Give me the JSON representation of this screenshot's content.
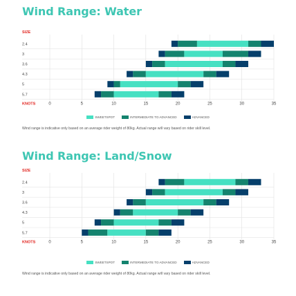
{
  "colors": {
    "title": "#3ec6b3",
    "sweetspot": "#46e0c2",
    "intermediate": "#14836e",
    "advanced": "#063f6b",
    "label_red": "#e1231e",
    "grid": "#d9d9d9",
    "row_line": "#e4e4e4"
  },
  "legend": {
    "sweetspot": "SWEETSPOT",
    "intermediate": "INTERMEDIATE TO ADVANCED",
    "advanced": "ADVANCED"
  },
  "note": "Wind range is indicative only based on an average rider weight of 80kg. Actual range will vary based on rider skill level.",
  "chart_data": [
    {
      "type": "bar",
      "title": "Wind Range: Water",
      "ylabel": "SIZE",
      "xlabel": "KNOTS",
      "xticks": [
        0,
        5,
        10,
        15,
        20,
        25,
        30,
        35
      ],
      "xlim": [
        0,
        35
      ],
      "categories": [
        "2.4",
        "3",
        "3.6",
        "4.3",
        "5",
        "5.7"
      ],
      "series": [
        {
          "name": "ADVANCED",
          "segments": [
            [
              19,
              20
            ],
            [
              17,
              18
            ],
            [
              15,
              16
            ],
            [
              12,
              13
            ],
            [
              9,
              10
            ],
            [
              7,
              8
            ]
          ]
        },
        {
          "name": "INTERMEDIATE TO ADVANCED",
          "segments": [
            [
              20,
              23
            ],
            [
              18,
              21
            ],
            [
              16,
              18
            ],
            [
              13,
              15
            ],
            [
              10,
              11
            ],
            [
              8,
              10
            ]
          ]
        },
        {
          "name": "SWEETSPOT",
          "segments": [
            [
              23,
              31
            ],
            [
              21,
              27
            ],
            [
              18,
              27
            ],
            [
              15,
              24
            ],
            [
              11,
              20
            ],
            [
              10,
              17
            ]
          ]
        },
        {
          "name": "INTERMEDIATE TO ADVANCED",
          "segments": [
            [
              31,
              33
            ],
            [
              27,
              31
            ],
            [
              27,
              29
            ],
            [
              24,
              26
            ],
            [
              20,
              22
            ],
            [
              17,
              19
            ]
          ]
        },
        {
          "name": "ADVANCED",
          "segments": [
            [
              33,
              35
            ],
            [
              31,
              33
            ],
            [
              29,
              31
            ],
            [
              26,
              28
            ],
            [
              22,
              24
            ],
            [
              19,
              21
            ]
          ]
        }
      ]
    },
    {
      "type": "bar",
      "title": "Wind Range: Land/Snow",
      "ylabel": "SIZE",
      "xlabel": "KNOTS",
      "xticks": [
        0,
        5,
        10,
        15,
        20,
        25,
        30,
        35
      ],
      "xlim": [
        0,
        35
      ],
      "categories": [
        "2.4",
        "3",
        "3.6",
        "4.3",
        "5",
        "5.7"
      ],
      "series": [
        {
          "name": "ADVANCED",
          "segments": [
            [
              17,
              18
            ],
            [
              15,
              16
            ],
            [
              12,
              13
            ],
            [
              10,
              11
            ],
            [
              7,
              8
            ],
            [
              5,
              6
            ]
          ]
        },
        {
          "name": "INTERMEDIATE TO ADVANCED",
          "segments": [
            [
              18,
              21
            ],
            [
              16,
              18
            ],
            [
              13,
              15
            ],
            [
              11,
              13
            ],
            [
              8,
              10
            ],
            [
              6,
              9
            ]
          ]
        },
        {
          "name": "SWEETSPOT",
          "segments": [
            [
              21,
              29
            ],
            [
              18,
              27
            ],
            [
              15,
              24
            ],
            [
              13,
              20
            ],
            [
              10,
              17
            ],
            [
              9,
              15
            ]
          ]
        },
        {
          "name": "INTERMEDIATE TO ADVANCED",
          "segments": [
            [
              29,
              31
            ],
            [
              27,
              29
            ],
            [
              24,
              26
            ],
            [
              20,
              22
            ],
            [
              17,
              19
            ],
            [
              15,
              17
            ]
          ]
        },
        {
          "name": "ADVANCED",
          "segments": [
            [
              31,
              33
            ],
            [
              29,
              31
            ],
            [
              26,
              28
            ],
            [
              22,
              24
            ],
            [
              19,
              21
            ],
            [
              17,
              19
            ]
          ]
        }
      ]
    }
  ]
}
